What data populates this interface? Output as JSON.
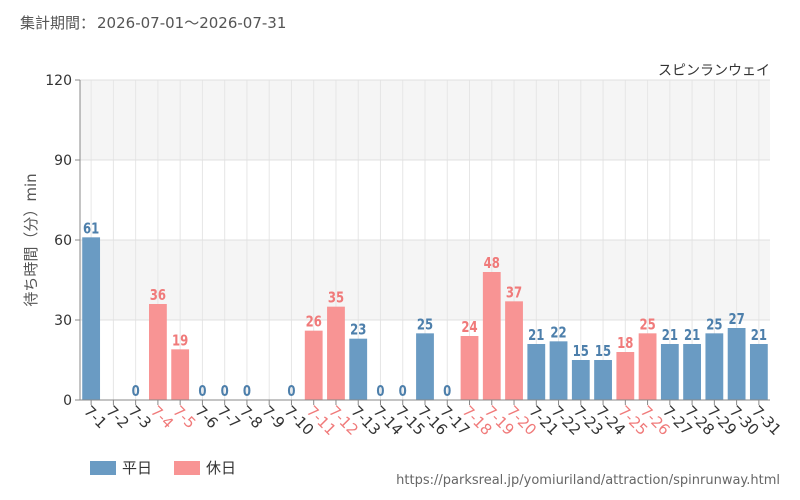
{
  "period": {
    "label": "集計期間：",
    "range": "2026-07-01～2026-07-31"
  },
  "chart_data": {
    "type": "bar",
    "subtitle": "スピンランウェイ",
    "ylabel": "待ち時間（分）min",
    "xlabel": "",
    "ylim": [
      0,
      120
    ],
    "yticks": [
      0,
      30,
      60,
      90,
      120
    ],
    "grid": true,
    "categories": [
      "7-1",
      "7-2",
      "7-3",
      "7-4",
      "7-5",
      "7-6",
      "7-7",
      "7-8",
      "7-9",
      "7-10",
      "7-11",
      "7-12",
      "7-13",
      "7-14",
      "7-15",
      "7-16",
      "7-17",
      "7-18",
      "7-19",
      "7-20",
      "7-21",
      "7-22",
      "7-23",
      "7-24",
      "7-25",
      "7-26",
      "7-27",
      "7-28",
      "7-29",
      "7-30",
      "7-31"
    ],
    "values": [
      61,
      null,
      0,
      36,
      19,
      0,
      0,
      0,
      null,
      0,
      26,
      35,
      23,
      0,
      0,
      25,
      0,
      24,
      48,
      37,
      21,
      22,
      15,
      15,
      18,
      25,
      21,
      21,
      25,
      27,
      21
    ],
    "day_type": [
      "weekday",
      "weekday",
      "weekday",
      "holiday",
      "holiday",
      "weekday",
      "weekday",
      "weekday",
      "weekday",
      "weekday",
      "holiday",
      "holiday",
      "weekday",
      "weekday",
      "weekday",
      "weekday",
      "weekday",
      "holiday",
      "holiday",
      "holiday",
      "weekday",
      "weekday",
      "weekday",
      "weekday",
      "holiday",
      "holiday",
      "weekday",
      "weekday",
      "weekday",
      "weekday",
      "weekday"
    ],
    "series": [
      {
        "name": "平日",
        "key": "weekday",
        "color": "#6a9bc3"
      },
      {
        "name": "休日",
        "key": "holiday",
        "color": "#f89494"
      }
    ],
    "legend_position": "bottom-left"
  },
  "legend": {
    "weekday": "平日",
    "holiday": "休日"
  },
  "colors": {
    "weekday": "#6a9bc3",
    "holiday": "#f89494",
    "weekday_text": "#4d7fab",
    "holiday_text": "#f07a7a"
  },
  "source_url": "https://parksreal.jp/yomiuriland/attraction/spinrunway.html"
}
